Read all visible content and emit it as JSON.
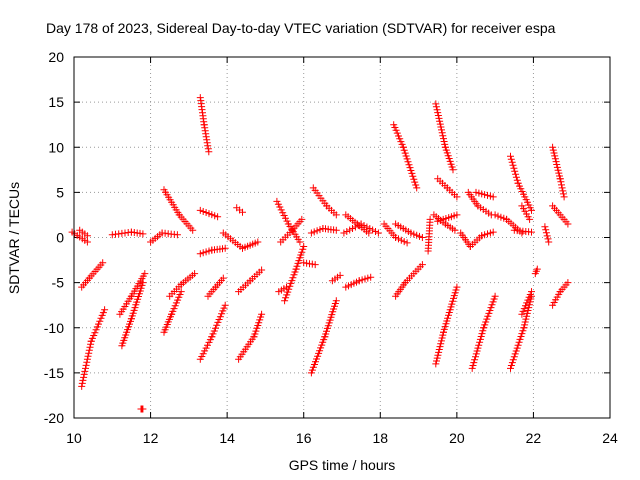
{
  "chart_data": {
    "type": "scatter",
    "title": "Day 178 of 2023, Sidereal Day-to-day VTEC variation (SDTVAR) for receiver espa",
    "xlabel": "GPS time / hours",
    "ylabel": "SDTVAR / TECUs",
    "xlim": [
      10,
      24
    ],
    "ylim": [
      -20,
      20
    ],
    "xticks": [
      10,
      12,
      14,
      16,
      18,
      20,
      22,
      24
    ],
    "yticks": [
      -20,
      -15,
      -10,
      -5,
      0,
      5,
      10,
      15,
      20
    ],
    "xtick_labels": [
      "10",
      "12",
      "14",
      "16",
      "18",
      "20",
      "22",
      "24"
    ],
    "ytick_labels": [
      "-20",
      "-15",
      "-10",
      "-5",
      "0",
      "5",
      "10",
      "15",
      "20"
    ],
    "grid": true,
    "marker": "+",
    "color": "#ff0000",
    "arcs": [
      {
        "x": [
          10.2,
          10.45
        ],
        "y": [
          -16.5,
          -11.5
        ]
      },
      {
        "x": [
          10.45,
          10.8
        ],
        "y": [
          -11.5,
          -8.0
        ]
      },
      {
        "x": [
          10.2,
          10.4
        ],
        "y": [
          -5.5,
          -4.5
        ]
      },
      {
        "x": [
          10.4,
          10.75
        ],
        "y": [
          -4.5,
          -2.8
        ]
      },
      {
        "x": [
          9.95,
          10.35
        ],
        "y": [
          0.6,
          -0.5
        ]
      },
      {
        "x": [
          10.15,
          10.35
        ],
        "y": [
          0.8,
          0.2
        ]
      },
      {
        "x": [
          11.0,
          11.5
        ],
        "y": [
          0.3,
          0.6
        ]
      },
      {
        "x": [
          11.5,
          11.8
        ],
        "y": [
          0.6,
          0.4
        ]
      },
      {
        "x": [
          11.25,
          11.5
        ],
        "y": [
          -12.0,
          -9.0
        ]
      },
      {
        "x": [
          11.5,
          11.8
        ],
        "y": [
          -9.0,
          -5.0
        ]
      },
      {
        "x": [
          11.2,
          11.5
        ],
        "y": [
          -8.5,
          -6.5
        ]
      },
      {
        "x": [
          11.5,
          11.85
        ],
        "y": [
          -6.5,
          -4.0
        ]
      },
      {
        "x": [
          11.75,
          11.8
        ],
        "y": [
          -19.0,
          -19.0
        ]
      },
      {
        "x": [
          12.0,
          12.3
        ],
        "y": [
          -0.5,
          0.5
        ]
      },
      {
        "x": [
          12.3,
          12.7
        ],
        "y": [
          0.5,
          0.3
        ]
      },
      {
        "x": [
          12.35,
          12.55
        ],
        "y": [
          -10.5,
          -8.5
        ]
      },
      {
        "x": [
          12.55,
          12.8
        ],
        "y": [
          -8.5,
          -6.0
        ]
      },
      {
        "x": [
          12.5,
          12.8
        ],
        "y": [
          -6.5,
          -5.2
        ]
      },
      {
        "x": [
          12.8,
          13.15
        ],
        "y": [
          -5.2,
          -4.0
        ]
      },
      {
        "x": [
          12.35,
          12.75
        ],
        "y": [
          5.3,
          2.5
        ]
      },
      {
        "x": [
          12.75,
          13.1
        ],
        "y": [
          2.5,
          0.8
        ]
      },
      {
        "x": [
          13.3,
          13.4
        ],
        "y": [
          15.5,
          12.5
        ]
      },
      {
        "x": [
          13.4,
          13.52
        ],
        "y": [
          12.5,
          9.5
        ]
      },
      {
        "x": [
          13.3,
          13.75
        ],
        "y": [
          3.0,
          2.3
        ]
      },
      {
        "x": [
          13.3,
          13.6
        ],
        "y": [
          -1.8,
          -1.4
        ]
      },
      {
        "x": [
          13.6,
          13.95
        ],
        "y": [
          -1.4,
          -1.2
        ]
      },
      {
        "x": [
          13.3,
          13.6
        ],
        "y": [
          -13.5,
          -11.0
        ]
      },
      {
        "x": [
          13.6,
          13.95
        ],
        "y": [
          -11.0,
          -7.5
        ]
      },
      {
        "x": [
          13.5,
          13.7
        ],
        "y": [
          -6.5,
          -5.5
        ]
      },
      {
        "x": [
          13.7,
          13.9
        ],
        "y": [
          -5.5,
          -4.5
        ]
      },
      {
        "x": [
          13.9,
          14.4
        ],
        "y": [
          0.5,
          -1.2
        ]
      },
      {
        "x": [
          14.4,
          14.8
        ],
        "y": [
          -1.2,
          -0.5
        ]
      },
      {
        "x": [
          14.25,
          14.4
        ],
        "y": [
          3.3,
          2.8
        ]
      },
      {
        "x": [
          14.3,
          14.7
        ],
        "y": [
          -13.5,
          -11.0
        ]
      },
      {
        "x": [
          14.7,
          14.9
        ],
        "y": [
          -11.0,
          -8.5
        ]
      },
      {
        "x": [
          14.3,
          14.6
        ],
        "y": [
          -6.0,
          -4.8
        ]
      },
      {
        "x": [
          14.6,
          14.9
        ],
        "y": [
          -4.8,
          -3.6
        ]
      },
      {
        "x": [
          15.3,
          15.6
        ],
        "y": [
          4.0,
          1.5
        ]
      },
      {
        "x": [
          15.6,
          15.9
        ],
        "y": [
          1.5,
          -0.5
        ]
      },
      {
        "x": [
          15.4,
          15.7
        ],
        "y": [
          -0.5,
          0.8
        ]
      },
      {
        "x": [
          15.7,
          15.95
        ],
        "y": [
          0.8,
          2.0
        ]
      },
      {
        "x": [
          15.5,
          15.8
        ],
        "y": [
          -7.0,
          -3.5
        ]
      },
      {
        "x": [
          15.8,
          16.0
        ],
        "y": [
          -3.5,
          -1.0
        ]
      },
      {
        "x": [
          15.35,
          15.55
        ],
        "y": [
          -6.0,
          -5.5
        ]
      },
      {
        "x": [
          16.0,
          16.3
        ],
        "y": [
          -2.8,
          -3.0
        ]
      },
      {
        "x": [
          16.2,
          16.55
        ],
        "y": [
          -15.0,
          -11.0
        ]
      },
      {
        "x": [
          16.55,
          16.85
        ],
        "y": [
          -11.0,
          -7.0
        ]
      },
      {
        "x": [
          16.25,
          16.6
        ],
        "y": [
          5.5,
          3.5
        ]
      },
      {
        "x": [
          16.6,
          16.85
        ],
        "y": [
          3.5,
          2.5
        ]
      },
      {
        "x": [
          16.2,
          16.5
        ],
        "y": [
          0.5,
          1.0
        ]
      },
      {
        "x": [
          16.5,
          16.85
        ],
        "y": [
          1.0,
          0.8
        ]
      },
      {
        "x": [
          16.75,
          16.95
        ],
        "y": [
          -4.8,
          -4.2
        ]
      },
      {
        "x": [
          17.05,
          17.5
        ],
        "y": [
          0.5,
          1.5
        ]
      },
      {
        "x": [
          17.5,
          17.95
        ],
        "y": [
          1.5,
          0.5
        ]
      },
      {
        "x": [
          17.1,
          17.4
        ],
        "y": [
          2.5,
          1.5
        ]
      },
      {
        "x": [
          17.4,
          17.7
        ],
        "y": [
          1.5,
          0.5
        ]
      },
      {
        "x": [
          17.1,
          17.45
        ],
        "y": [
          -5.5,
          -4.8
        ]
      },
      {
        "x": [
          17.45,
          17.75
        ],
        "y": [
          -4.8,
          -4.4
        ]
      },
      {
        "x": [
          18.35,
          18.6
        ],
        "y": [
          12.5,
          10.0
        ]
      },
      {
        "x": [
          18.6,
          18.95
        ],
        "y": [
          10.0,
          5.5
        ]
      },
      {
        "x": [
          18.1,
          18.4
        ],
        "y": [
          1.5,
          0.0
        ]
      },
      {
        "x": [
          18.4,
          18.7
        ],
        "y": [
          0.0,
          -0.6
        ]
      },
      {
        "x": [
          18.4,
          18.8
        ],
        "y": [
          1.5,
          0.5
        ]
      },
      {
        "x": [
          18.8,
          19.1
        ],
        "y": [
          0.5,
          0.0
        ]
      },
      {
        "x": [
          18.4,
          18.65
        ],
        "y": [
          -6.5,
          -5.0
        ]
      },
      {
        "x": [
          18.65,
          19.1
        ],
        "y": [
          -5.0,
          -3.0
        ]
      },
      {
        "x": [
          19.25,
          19.3
        ],
        "y": [
          -1.5,
          2.0
        ]
      },
      {
        "x": [
          19.45,
          19.7
        ],
        "y": [
          14.8,
          10.0
        ]
      },
      {
        "x": [
          19.7,
          19.9
        ],
        "y": [
          10.0,
          7.5
        ]
      },
      {
        "x": [
          19.5,
          19.75
        ],
        "y": [
          6.5,
          5.5
        ]
      },
      {
        "x": [
          19.75,
          20.0
        ],
        "y": [
          5.5,
          4.5
        ]
      },
      {
        "x": [
          19.4,
          19.7
        ],
        "y": [
          2.5,
          1.5
        ]
      },
      {
        "x": [
          19.7,
          19.95
        ],
        "y": [
          1.5,
          0.8
        ]
      },
      {
        "x": [
          19.45,
          19.65
        ],
        "y": [
          -14.0,
          -10.5
        ]
      },
      {
        "x": [
          19.65,
          20.0
        ],
        "y": [
          -10.5,
          -5.5
        ]
      },
      {
        "x": [
          19.5,
          20.0
        ],
        "y": [
          1.8,
          2.5
        ]
      },
      {
        "x": [
          20.3,
          20.55
        ],
        "y": [
          5.0,
          3.5
        ]
      },
      {
        "x": [
          20.55,
          20.9
        ],
        "y": [
          3.5,
          2.5
        ]
      },
      {
        "x": [
          20.5,
          20.95
        ],
        "y": [
          5.0,
          4.5
        ]
      },
      {
        "x": [
          20.1,
          20.35
        ],
        "y": [
          0.5,
          -1.0
        ]
      },
      {
        "x": [
          20.35,
          20.65
        ],
        "y": [
          -1.0,
          0.2
        ]
      },
      {
        "x": [
          20.65,
          20.95
        ],
        "y": [
          0.2,
          0.6
        ]
      },
      {
        "x": [
          20.4,
          20.7
        ],
        "y": [
          -14.5,
          -10.0
        ]
      },
      {
        "x": [
          20.7,
          21.0
        ],
        "y": [
          -10.0,
          -6.5
        ]
      },
      {
        "x": [
          21.0,
          21.3
        ],
        "y": [
          2.5,
          2.0
        ]
      },
      {
        "x": [
          21.3,
          21.7
        ],
        "y": [
          2.0,
          0.5
        ]
      },
      {
        "x": [
          21.4,
          21.6
        ],
        "y": [
          9.0,
          6.0
        ]
      },
      {
        "x": [
          21.6,
          21.95
        ],
        "y": [
          6.0,
          3.0
        ]
      },
      {
        "x": [
          21.7,
          21.9
        ],
        "y": [
          3.5,
          2.0
        ]
      },
      {
        "x": [
          21.4,
          21.75
        ],
        "y": [
          -14.5,
          -10.0
        ]
      },
      {
        "x": [
          21.75,
          21.95
        ],
        "y": [
          -10.0,
          -6.5
        ]
      },
      {
        "x": [
          21.5,
          21.95
        ],
        "y": [
          0.8,
          0.6
        ]
      },
      {
        "x": [
          21.7,
          21.95
        ],
        "y": [
          -8.5,
          -6.0
        ]
      },
      {
        "x": [
          22.05,
          22.1
        ],
        "y": [
          -4.0,
          -3.5
        ]
      },
      {
        "x": [
          22.3,
          22.4
        ],
        "y": [
          1.2,
          -0.5
        ]
      },
      {
        "x": [
          22.5,
          22.7
        ],
        "y": [
          10.0,
          6.5
        ]
      },
      {
        "x": [
          22.7,
          22.8
        ],
        "y": [
          6.5,
          4.5
        ]
      },
      {
        "x": [
          22.5,
          22.9
        ],
        "y": [
          3.5,
          1.5
        ]
      },
      {
        "x": [
          22.5,
          22.7
        ],
        "y": [
          -7.5,
          -6.0
        ]
      },
      {
        "x": [
          22.7,
          22.9
        ],
        "y": [
          -6.0,
          -5.0
        ]
      }
    ]
  }
}
